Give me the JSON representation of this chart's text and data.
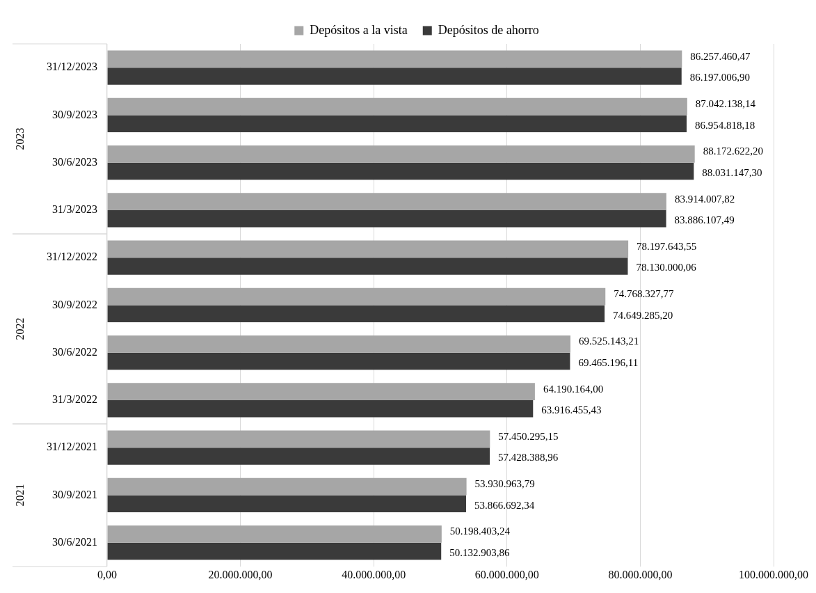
{
  "chart_data": {
    "type": "bar",
    "orientation": "horizontal",
    "categories": [
      "31/12/2023",
      "30/9/2023",
      "30/6/2023",
      "31/3/2023",
      "31/12/2022",
      "30/9/2022",
      "30/6/2022",
      "31/3/2022",
      "31/12/2021",
      "30/9/2021",
      "30/6/2021"
    ],
    "series": [
      {
        "name": "Depósitos a la vista",
        "color": "#a6a6a6",
        "values": [
          86257460.47,
          87042138.14,
          88172622.2,
          83914007.82,
          78197643.55,
          74768327.77,
          69525143.21,
          64190164.0,
          57450295.15,
          53930963.79,
          50198403.24
        ],
        "value_labels": [
          "86.257.460,47",
          "87.042.138,14",
          "88.172.622,20",
          "83.914.007,82",
          "78.197.643,55",
          "74.768.327,77",
          "69.525.143,21",
          "64.190.164,00",
          "57.450.295,15",
          "53.930.963,79",
          "50.198.403,24"
        ]
      },
      {
        "name": "Depósitos de ahorro",
        "color": "#3a3a3a",
        "values": [
          86197006.9,
          86954818.18,
          88031147.3,
          83886107.49,
          78130000.06,
          74649285.2,
          69465196.11,
          63916455.43,
          57428388.96,
          53866692.34,
          50132903.86
        ],
        "value_labels": [
          "86.197.006,90",
          "86.954.818,18",
          "88.031.147,30",
          "83.886.107,49",
          "78.130.000,06",
          "74.649.285,20",
          "69.465.196,11",
          "63.916.455,43",
          "57.428.388,96",
          "53.866.692,34",
          "50.132.903,86"
        ]
      }
    ],
    "xlim": [
      0,
      100000000
    ],
    "xticks": [
      {
        "value": 0,
        "label": "0,00"
      },
      {
        "value": 20000000,
        "label": "20.000.000,00"
      },
      {
        "value": 40000000,
        "label": "40.000.000,00"
      },
      {
        "value": 60000000,
        "label": "60.000.000,00"
      },
      {
        "value": 80000000,
        "label": "80.000.000,00"
      },
      {
        "value": 100000000,
        "label": "100.000.000,00"
      }
    ],
    "annotations": [
      "2023",
      "2022",
      "2021"
    ],
    "grid": "x",
    "legend": "top"
  }
}
